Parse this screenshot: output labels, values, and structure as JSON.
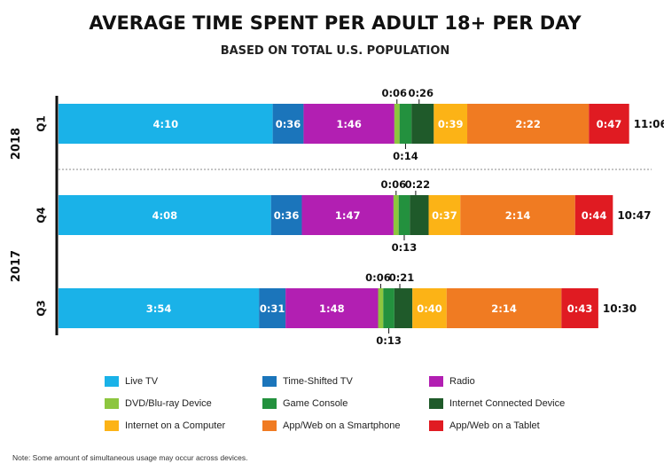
{
  "chart_data": {
    "type": "bar",
    "orientation": "horizontal",
    "stacked": true,
    "title": "AVERAGE TIME SPENT PER ADULT 18+ PER DAY",
    "subtitle": "BASED ON TOTAL U.S. POPULATION",
    "units": "hours:minutes",
    "groups": [
      {
        "label": "2018",
        "rows": [
          "Q1"
        ]
      },
      {
        "label": "2017",
        "rows": [
          "Q4",
          "Q3"
        ]
      }
    ],
    "categories": [
      "Q1",
      "Q4",
      "Q3"
    ],
    "totals": [
      "11:06",
      "10:47",
      "10:30"
    ],
    "series": [
      {
        "name": "Live TV",
        "color": "#1ab2e8",
        "labels": [
          "4:10",
          "4:08",
          "3:54"
        ],
        "values": [
          250,
          248,
          234
        ]
      },
      {
        "name": "Time-Shifted TV",
        "color": "#1b75bb",
        "labels": [
          "0:36",
          "0:36",
          "0:31"
        ],
        "values": [
          36,
          36,
          31
        ]
      },
      {
        "name": "Radio",
        "color": "#b21fb2",
        "labels": [
          "1:46",
          "1:47",
          "1:48"
        ],
        "values": [
          106,
          107,
          108
        ]
      },
      {
        "name": "DVD/Blu-ray Device",
        "color": "#8dc63f",
        "labels": [
          "0:06",
          "0:06",
          "0:06"
        ],
        "values": [
          6,
          6,
          6
        ]
      },
      {
        "name": "Game Console",
        "color": "#23913e",
        "labels": [
          "0:14",
          "0:13",
          "0:13"
        ],
        "values": [
          14,
          13,
          13
        ]
      },
      {
        "name": "Internet Connected Device",
        "color": "#1f5a2a",
        "labels": [
          "0:26",
          "0:22",
          "0:21"
        ],
        "values": [
          26,
          22,
          21
        ]
      },
      {
        "name": "Internet on a Computer",
        "color": "#fcb316",
        "labels": [
          "0:39",
          "0:37",
          "0:40"
        ],
        "values": [
          39,
          37,
          40
        ]
      },
      {
        "name": "App/Web on a Smartphone",
        "color": "#f07b22",
        "labels": [
          "2:22",
          "2:14",
          "2:14"
        ],
        "values": [
          142,
          134,
          134
        ]
      },
      {
        "name": "App/Web on a Tablet",
        "color": "#e01b22",
        "labels": [
          "0:47",
          "0:44",
          "0:43"
        ],
        "values": [
          47,
          44,
          43
        ]
      }
    ],
    "legend_position": "bottom"
  },
  "note": "Note:  Some amount of simultaneous usage may occur across devices."
}
